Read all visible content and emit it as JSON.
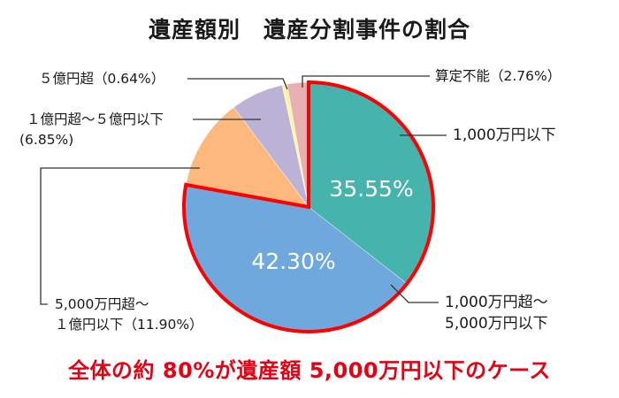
{
  "title": "遺産額別　遺産分割事件の割合",
  "caption": "全体の約 80%が遺産額 5,000万円以下のケース",
  "chart_data": {
    "type": "pie",
    "title": "遺産額別　遺産分割事件の割合",
    "start_angle": "12 o'clock, clockwise",
    "categories": [
      "1,000万円以下",
      "1,000万円超〜5,000万円以下",
      "5,000万円超〜1億円以下",
      "1億円超〜5億円以下",
      "5億円超",
      "算定不能"
    ],
    "values": [
      35.55,
      42.3,
      11.9,
      6.85,
      0.64,
      2.76
    ],
    "colors": [
      "#47b3ad",
      "#6fa8dc",
      "#fdb97d",
      "#bbb2d6",
      "#fdf5a8",
      "#e8b0b0"
    ],
    "highlighted": [
      "1,000万円以下",
      "1,000万円超〜5,000万円以下"
    ],
    "highlight_color": "#ff0000",
    "inner_labels": [
      "35.55%",
      "42.30%"
    ],
    "annotation": "全体の約 80%が遺産額 5,000万円以下のケース"
  },
  "labels": {
    "s0": "1,000万円以下",
    "s1_line1": "1,000万円超〜",
    "s1_line2": "5,000万円以下",
    "s2_line1": "5,000万円超〜",
    "s2_line2": "１億円以下（11.90%）",
    "s3_line1": "１億円超〜５億円以下",
    "s3_line2": "(6.85%)",
    "s4": "５億円超（0.64%）",
    "s5": "算定不能（2.76%）",
    "pct0": "35.55%",
    "pct1": "42.30%"
  }
}
